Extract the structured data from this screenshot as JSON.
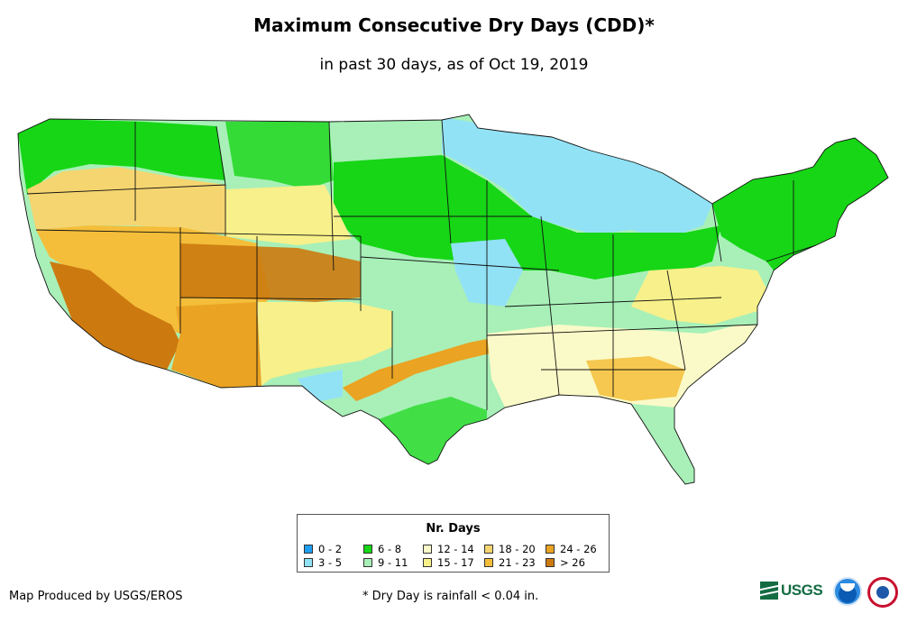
{
  "header": {
    "title": "Maximum Consecutive Dry Days (CDD)*",
    "subtitle": "in past 30 days, as of Oct 19, 2019"
  },
  "legend": {
    "title": "Nr. Days",
    "items": [
      {
        "label": "0 - 2",
        "color": "#1e9ef0"
      },
      {
        "label": "3 - 5",
        "color": "#92e2f6"
      },
      {
        "label": "6 - 8",
        "color": "#16d616"
      },
      {
        "label": "9 - 11",
        "color": "#a8f0b8"
      },
      {
        "label": "12 - 14",
        "color": "#fafac8"
      },
      {
        "label": "15 - 17",
        "color": "#f8f08a"
      },
      {
        "label": "18 - 20",
        "color": "#f5d570"
      },
      {
        "label": "21 - 23",
        "color": "#f4be3a"
      },
      {
        "label": "24 - 26",
        "color": "#eaa322"
      },
      {
        "label": "> 26",
        "color": "#cc7a10"
      }
    ]
  },
  "footer": {
    "credit": "Map Produced by USGS/EROS",
    "footnote": "* Dry Day is rainfall < 0.04 in.",
    "usgs_logo_text": "USGS"
  },
  "map": {
    "region": "Contiguous United States",
    "regions": [
      {
        "name": "Pacific Northwest",
        "category": "6 - 8"
      },
      {
        "name": "Northern Rockies / Plains",
        "category": "9 - 11"
      },
      {
        "name": "Upper Midwest / Great Lakes",
        "category": "3 - 5"
      },
      {
        "name": "Corn Belt / Midwest",
        "category": "6 - 8"
      },
      {
        "name": "New England",
        "category": "6 - 8"
      },
      {
        "name": "California / Nevada",
        "category": "21 - 23"
      },
      {
        "name": "Southern California / Arizona",
        "category": "> 26"
      },
      {
        "name": "Utah / Colorado",
        "category": "24 - 26"
      },
      {
        "name": "New Mexico",
        "category": "15 - 17"
      },
      {
        "name": "Southern Plains / Texas",
        "category": "9 - 11"
      },
      {
        "name": "Southeast",
        "category": "15 - 17"
      },
      {
        "name": "Florida",
        "category": "9 - 11"
      }
    ]
  }
}
